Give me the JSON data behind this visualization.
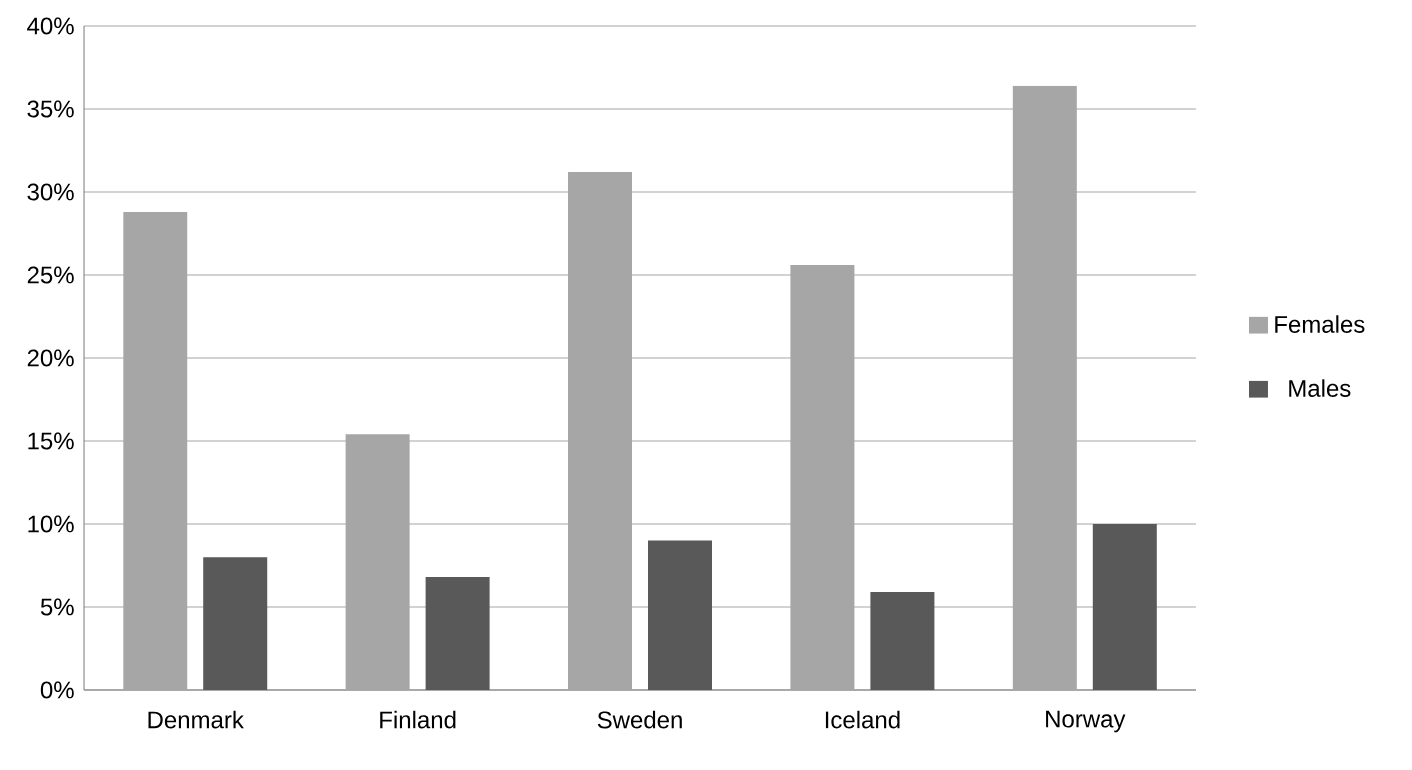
{
  "chart_data": {
    "type": "bar",
    "categories": [
      "Denmark",
      "Finland",
      "Sweden",
      "Iceland",
      "Norway"
    ],
    "series": [
      {
        "name": "Females",
        "color": "#a6a6a6",
        "values": [
          28.8,
          15.4,
          31.2,
          25.6,
          36.4
        ]
      },
      {
        "name": "Males",
        "color": "#595959",
        "values": [
          8.0,
          6.8,
          9.0,
          5.9,
          10.0
        ]
      }
    ],
    "ylim": [
      0,
      40
    ],
    "yticks": [
      {
        "value": 0,
        "label": "0%"
      },
      {
        "value": 5,
        "label": "5%"
      },
      {
        "value": 10,
        "label": "10%"
      },
      {
        "value": 15,
        "label": "15%"
      },
      {
        "value": 20,
        "label": "20%"
      },
      {
        "value": 25,
        "label": "25%"
      },
      {
        "value": 30,
        "label": "30%"
      },
      {
        "value": 35,
        "label": "35%"
      },
      {
        "value": 40,
        "label": "40%"
      }
    ],
    "grid": "y",
    "legend": "right"
  }
}
